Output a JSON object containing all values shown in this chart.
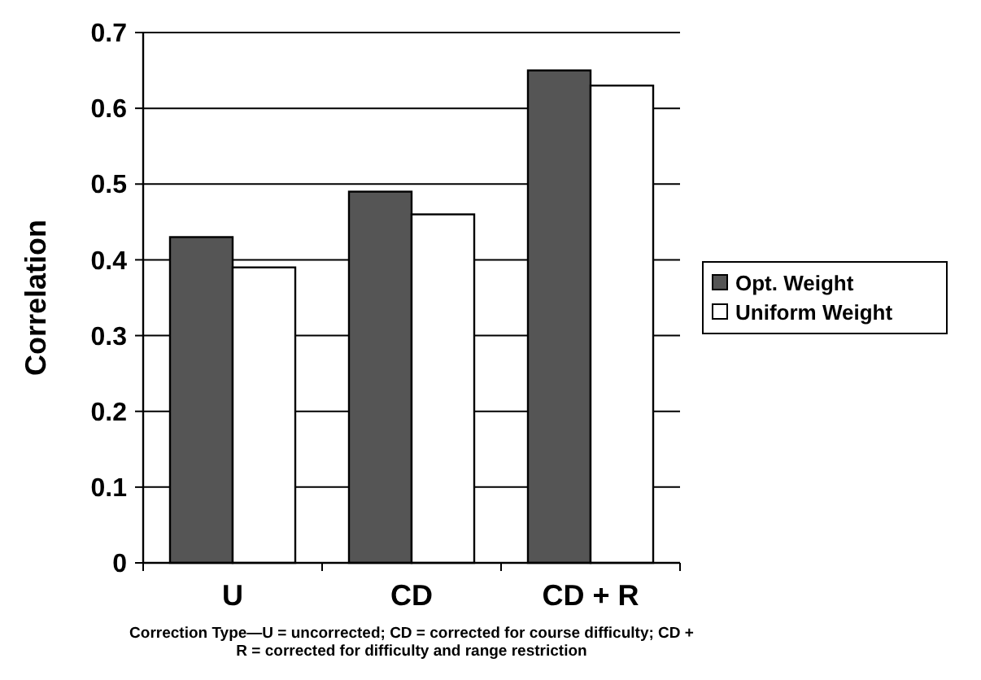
{
  "chart_data": {
    "type": "bar",
    "xlabel": "Correction Type—U = uncorrected; CD = corrected for course difficulty; CD + R = corrected for difficulty and range restriction",
    "ylabel": "Correlation",
    "categories": [
      "U",
      "CD",
      "CD + R"
    ],
    "series": [
      {
        "name": "Opt. Weight",
        "color": "#555555",
        "values": [
          0.43,
          0.49,
          0.65
        ]
      },
      {
        "name": "Uniform Weight",
        "color": "#ffffff",
        "values": [
          0.39,
          0.46,
          0.63
        ]
      }
    ],
    "ylim": [
      0,
      0.7
    ],
    "yticks": [
      0,
      0.1,
      0.2,
      0.3,
      0.4,
      0.5,
      0.6,
      0.7
    ],
    "grid": "y",
    "legend": "right"
  }
}
